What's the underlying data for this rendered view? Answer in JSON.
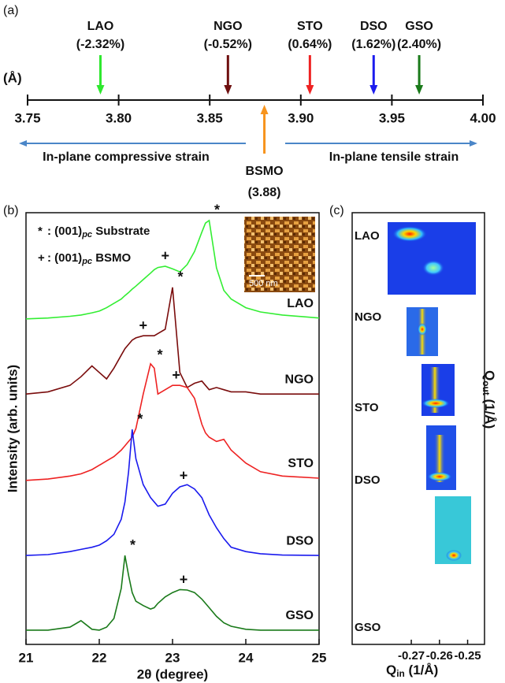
{
  "chart_data": [
    {
      "type": "number-line",
      "panel": "(a)",
      "unit": "(Å)",
      "xlim": [
        3.75,
        4.0
      ],
      "xticks": [
        3.75,
        {
          "value": 3.8,
          "label": "3.80"
        },
        3.85,
        {
          "value": 3.9,
          "label": "3.90"
        },
        3.95,
        {
          "value": 4.0,
          "label": "4.00"
        }
      ],
      "series": [
        {
          "name": "LAO",
          "label": "(-2.32%)",
          "value": 3.79,
          "color": "#2ee82e"
        },
        {
          "name": "NGO",
          "label": "(-0.52%)",
          "value": 3.86,
          "color": "#6e0f0f"
        },
        {
          "name": "STO",
          "label": "(0.64%)",
          "value": 3.905,
          "color": "#ee2222"
        },
        {
          "name": "DSO",
          "label": "(1.62%)",
          "value": 3.94,
          "color": "#1c1cee"
        },
        {
          "name": "GSO",
          "label": "(2.40%)",
          "value": 3.965,
          "color": "#1a7a1a"
        }
      ],
      "film": {
        "name": "BSMO",
        "label": "(3.88)",
        "value": 3.88,
        "color": "#f7941d"
      },
      "left_arrow": "In-plane compressive strain",
      "right_arrow": "In-plane tensile strain"
    },
    {
      "type": "line",
      "panel": "(b)",
      "xlabel": "2θ (degree)",
      "ylabel": "Intensity (arb. units)",
      "xlim": [
        21,
        25
      ],
      "xticks": [
        21,
        22,
        23,
        24,
        25
      ],
      "ylim": [
        0,
        100
      ],
      "notes": [
        {
          "symbol": "*",
          "text": ": (001)",
          "sub": "pc",
          "suffix": " Substrate"
        },
        {
          "symbol": "+",
          "text": ": (001)",
          "sub": "pc",
          "suffix": " BSMO"
        }
      ],
      "inset_scale": "500 nm",
      "x": [
        21,
        21.3,
        21.6,
        21.75,
        21.9,
        22.0,
        22.1,
        22.2,
        22.3,
        22.35,
        22.4,
        22.45,
        22.5,
        22.6,
        22.7,
        22.75,
        22.8,
        22.9,
        23.0,
        23.1,
        23.2,
        23.3,
        23.4,
        23.45,
        23.5,
        23.6,
        23.7,
        23.8,
        24.0,
        24.2,
        24.5,
        25
      ],
      "series": [
        {
          "name": "LAO",
          "color": "#33ee33",
          "markers": [
            {
              "symbol": "*",
              "x": 23.5
            },
            {
              "symbol": "+",
              "x": 22.9
            }
          ],
          "values": [
            75.4,
            75.6,
            76,
            76.3,
            76.8,
            77.2,
            78,
            79,
            80,
            80.8,
            81.5,
            82.3,
            83,
            84.5,
            86,
            86.8,
            87.3,
            87.6,
            87,
            86.3,
            88,
            91,
            95.5,
            97.6,
            98.2,
            87.2,
            82,
            80,
            78,
            77,
            76.3,
            75.6
          ]
        },
        {
          "name": "NGO",
          "color": "#7a0c0c",
          "markers": [
            {
              "symbol": "*",
              "x": 23.0
            },
            {
              "symbol": "+",
              "x": 22.6
            }
          ],
          "values": [
            58,
            58.5,
            60,
            62,
            64.5,
            63,
            61.5,
            64,
            67,
            68.5,
            69.5,
            70.5,
            71,
            71.5,
            71.5,
            71.5,
            72,
            73,
            82.7,
            63,
            59.5,
            60.5,
            61,
            60,
            59,
            59.5,
            59,
            58.5,
            58.5,
            58,
            58,
            58
          ]
        },
        {
          "name": "STO",
          "color": "#ee2222",
          "markers": [
            {
              "symbol": "*",
              "x": 22.72
            },
            {
              "symbol": "+",
              "x": 23.05
            }
          ],
          "values": [
            38,
            38.3,
            39,
            39.5,
            40.5,
            41.5,
            42.5,
            43.5,
            45,
            46,
            47,
            48,
            50,
            58,
            65,
            64,
            58,
            59,
            60,
            60,
            59.5,
            57,
            51,
            49,
            48,
            47,
            47.5,
            45,
            42,
            40,
            39,
            38.5
          ]
        },
        {
          "name": "DSO",
          "color": "#1a1aee",
          "markers": [
            {
              "symbol": "*",
              "x": 22.45
            },
            {
              "symbol": "+",
              "x": 23.15
            }
          ],
          "values": [
            20.6,
            20.8,
            21.5,
            22,
            22.5,
            23,
            24,
            25.5,
            29,
            33,
            40,
            49.8,
            43,
            37,
            34,
            33,
            32,
            32.5,
            35,
            36.5,
            37,
            36,
            34,
            32,
            30,
            27,
            24.5,
            22.5,
            21.5,
            21,
            20.7,
            20.6
          ]
        },
        {
          "name": "GSO",
          "color": "#1a7a1a",
          "markers": [
            {
              "symbol": "*",
              "x": 22.35
            },
            {
              "symbol": "+",
              "x": 23.15
            }
          ],
          "values": [
            3.3,
            3.3,
            4,
            5.5,
            3.5,
            3.3,
            4,
            6,
            13,
            20.6,
            16,
            12,
            10,
            9,
            8.2,
            8.5,
            9.5,
            11,
            12,
            12.7,
            12.6,
            12,
            10.5,
            9.5,
            8.5,
            6.5,
            5,
            4.2,
            3.5,
            3.3,
            3.3,
            3.3
          ]
        }
      ]
    },
    {
      "type": "map",
      "panel": "(c)",
      "xlabel": {
        "text": "Q",
        "sub": "in",
        "suffix": " (1/Å)"
      },
      "ylabel": {
        "text": "Q",
        "sub": "out",
        "suffix": " (1/Å)"
      },
      "xlim": [
        -0.291,
        -0.244
      ],
      "xticks": [
        -0.27,
        -0.26,
        -0.25
      ],
      "samples": [
        "LAO",
        "NGO",
        "STO",
        "DSO",
        "GSO"
      ]
    }
  ]
}
